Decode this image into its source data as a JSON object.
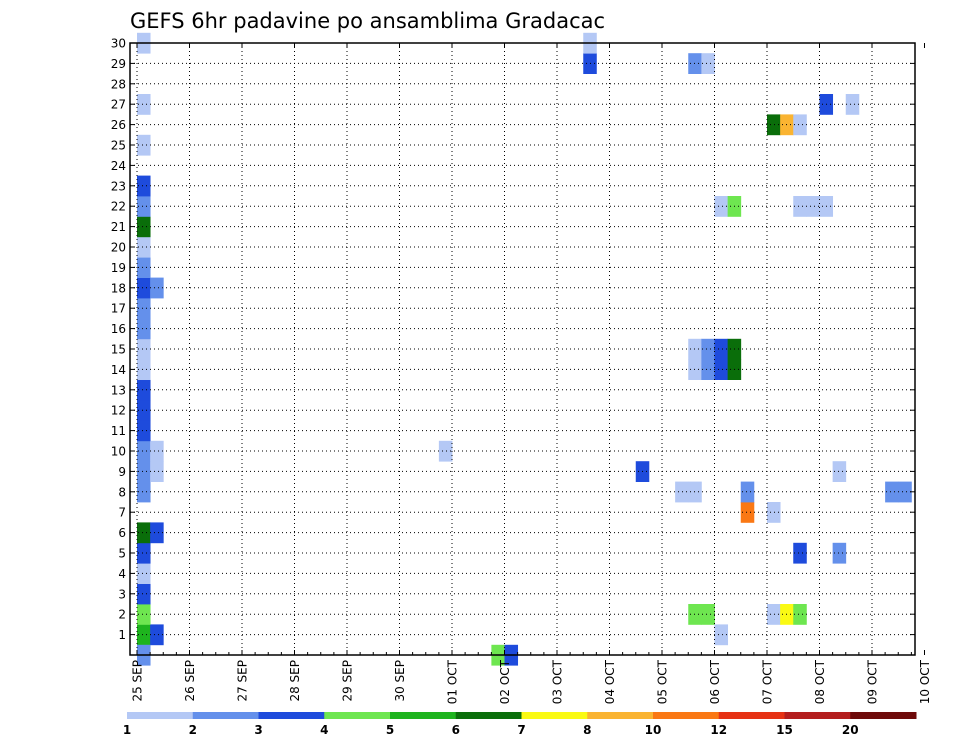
{
  "chart_data": {
    "type": "heatmap",
    "title": "GEFS 6hr padavine po ansamblima Gradacac",
    "x_ticks": [
      "25 SEP",
      "26 SEP",
      "27 SEP",
      "28 SEP",
      "29 SEP",
      "30 SEP",
      "01 OCT",
      "02 OCT",
      "03 OCT",
      "04 OCT",
      "05 OCT",
      "06 OCT",
      "07 OCT",
      "08 OCT",
      "09 OCT",
      "10 OCT"
    ],
    "y_ticks": [
      "1",
      "2",
      "3",
      "4",
      "5",
      "6",
      "7",
      "8",
      "9",
      "10",
      "11",
      "12",
      "13",
      "14",
      "15",
      "16",
      "17",
      "18",
      "19",
      "20",
      "21",
      "22",
      "23",
      "24",
      "25",
      "26",
      "27",
      "28",
      "29",
      "30"
    ],
    "xlabel": "",
    "ylabel": "",
    "y_range": [
      0,
      30
    ],
    "grid": "dotted",
    "colorbar": {
      "labels": [
        "1",
        "2",
        "3",
        "4",
        "5",
        "6",
        "7",
        "8",
        "10",
        "12",
        "15",
        "20"
      ],
      "colors": [
        "#b4c8f5",
        "#6490eb",
        "#1e4bdc",
        "#6ee650",
        "#1eb41e",
        "#0a6e0a",
        "#fafa14",
        "#fab432",
        "#fa7814",
        "#e63214",
        "#b41e1e",
        "#6e0a0a"
      ]
    },
    "legend_position": "bottom",
    "precip_cells": [
      {
        "member": 1,
        "day": "25 SEP",
        "hour": 6,
        "level": 5
      },
      {
        "member": 1,
        "day": "25 SEP",
        "hour": 12,
        "level": 3
      },
      {
        "member": 1,
        "day": "06 OCT",
        "hour": 6,
        "level": 1
      },
      {
        "member": 2,
        "day": "25 SEP",
        "hour": 6,
        "level": 4
      },
      {
        "member": 2,
        "day": "05 OCT",
        "hour": 18,
        "level": 4
      },
      {
        "member": 2,
        "day": "06 OCT",
        "hour": 0,
        "level": 4
      },
      {
        "member": 2,
        "day": "07 OCT",
        "hour": 6,
        "level": 1
      },
      {
        "member": 2,
        "day": "07 OCT",
        "hour": 12,
        "level": 7
      },
      {
        "member": 2,
        "day": "07 OCT",
        "hour": 18,
        "level": 4
      },
      {
        "member": 3,
        "day": "25 SEP",
        "hour": 6,
        "level": 3
      },
      {
        "member": 4,
        "day": "25 SEP",
        "hour": 6,
        "level": 1
      },
      {
        "member": 5,
        "day": "25 SEP",
        "hour": 6,
        "level": 3
      },
      {
        "member": 5,
        "day": "07 OCT",
        "hour": 18,
        "level": 3
      },
      {
        "member": 5,
        "day": "08 OCT",
        "hour": 12,
        "level": 2
      },
      {
        "member": 6,
        "day": "25 SEP",
        "hour": 6,
        "level": 6
      },
      {
        "member": 6,
        "day": "25 SEP",
        "hour": 12,
        "level": 3
      },
      {
        "member": 7,
        "day": "06 OCT",
        "hour": 18,
        "level": 9
      },
      {
        "member": 7,
        "day": "07 OCT",
        "hour": 6,
        "level": 1
      },
      {
        "member": 8,
        "day": "25 SEP",
        "hour": 6,
        "level": 2
      },
      {
        "member": 8,
        "day": "05 OCT",
        "hour": 12,
        "level": 1
      },
      {
        "member": 8,
        "day": "05 OCT",
        "hour": 18,
        "level": 1
      },
      {
        "member": 8,
        "day": "06 OCT",
        "hour": 18,
        "level": 2
      },
      {
        "member": 8,
        "day": "09 OCT",
        "hour": 12,
        "level": 2
      },
      {
        "member": 8,
        "day": "09 OCT",
        "hour": 18,
        "level": 2
      },
      {
        "member": 9,
        "day": "25 SEP",
        "hour": 6,
        "level": 2
      },
      {
        "member": 9,
        "day": "25 SEP",
        "hour": 12,
        "level": 1
      },
      {
        "member": 9,
        "day": "04 OCT",
        "hour": 18,
        "level": 3
      },
      {
        "member": 9,
        "day": "08 OCT",
        "hour": 12,
        "level": 1
      },
      {
        "member": 10,
        "day": "25 SEP",
        "hour": 6,
        "level": 2
      },
      {
        "member": 10,
        "day": "25 SEP",
        "hour": 12,
        "level": 1
      },
      {
        "member": 10,
        "day": "01 OCT",
        "hour": 0,
        "level": 1
      },
      {
        "member": 11,
        "day": "25 SEP",
        "hour": 6,
        "level": 3
      },
      {
        "member": 12,
        "day": "25 SEP",
        "hour": 6,
        "level": 3
      },
      {
        "member": 13,
        "day": "25 SEP",
        "hour": 6,
        "level": 3
      },
      {
        "member": 14,
        "day": "25 SEP",
        "hour": 6,
        "level": 1
      },
      {
        "member": 14,
        "day": "05 OCT",
        "hour": 18,
        "level": 1
      },
      {
        "member": 14,
        "day": "06 OCT",
        "hour": 0,
        "level": 2
      },
      {
        "member": 14,
        "day": "06 OCT",
        "hour": 6,
        "level": 3
      },
      {
        "member": 14,
        "day": "06 OCT",
        "hour": 12,
        "level": 6
      },
      {
        "member": 15,
        "day": "25 SEP",
        "hour": 6,
        "level": 1
      },
      {
        "member": 15,
        "day": "05 OCT",
        "hour": 18,
        "level": 1
      },
      {
        "member": 15,
        "day": "06 OCT",
        "hour": 0,
        "level": 2
      },
      {
        "member": 15,
        "day": "06 OCT",
        "hour": 6,
        "level": 3
      },
      {
        "member": 15,
        "day": "06 OCT",
        "hour": 12,
        "level": 6
      },
      {
        "member": 16,
        "day": "25 SEP",
        "hour": 6,
        "level": 2
      },
      {
        "member": 17,
        "day": "25 SEP",
        "hour": 6,
        "level": 2
      },
      {
        "member": 18,
        "day": "25 SEP",
        "hour": 6,
        "level": 3
      },
      {
        "member": 18,
        "day": "25 SEP",
        "hour": 12,
        "level": 2
      },
      {
        "member": 19,
        "day": "25 SEP",
        "hour": 6,
        "level": 2
      },
      {
        "member": 20,
        "day": "25 SEP",
        "hour": 6,
        "level": 1
      },
      {
        "member": 21,
        "day": "25 SEP",
        "hour": 6,
        "level": 6
      },
      {
        "member": 22,
        "day": "25 SEP",
        "hour": 6,
        "level": 2
      },
      {
        "member": 22,
        "day": "06 OCT",
        "hour": 6,
        "level": 1
      },
      {
        "member": 22,
        "day": "06 OCT",
        "hour": 12,
        "level": 4
      },
      {
        "member": 22,
        "day": "07 OCT",
        "hour": 18,
        "level": 1
      },
      {
        "member": 22,
        "day": "08 OCT",
        "hour": 0,
        "level": 1
      },
      {
        "member": 22,
        "day": "08 OCT",
        "hour": 6,
        "level": 1
      },
      {
        "member": 23,
        "day": "25 SEP",
        "hour": 6,
        "level": 3
      },
      {
        "member": 25,
        "day": "25 SEP",
        "hour": 6,
        "level": 1
      },
      {
        "member": 26,
        "day": "07 OCT",
        "hour": 6,
        "level": 6
      },
      {
        "member": 26,
        "day": "07 OCT",
        "hour": 12,
        "level": 8
      },
      {
        "member": 26,
        "day": "07 OCT",
        "hour": 18,
        "level": 1
      },
      {
        "member": 27,
        "day": "25 SEP",
        "hour": 6,
        "level": 1
      },
      {
        "member": 27,
        "day": "08 OCT",
        "hour": 6,
        "level": 3
      },
      {
        "member": 27,
        "day": "08 OCT",
        "hour": 18,
        "level": 1
      },
      {
        "member": 29,
        "day": "03 OCT",
        "hour": 18,
        "level": 3
      },
      {
        "member": 29,
        "day": "05 OCT",
        "hour": 18,
        "level": 2
      },
      {
        "member": 29,
        "day": "06 OCT",
        "hour": 0,
        "level": 1
      },
      {
        "member": 30,
        "day": "25 SEP",
        "hour": 6,
        "level": 1
      },
      {
        "member": 30,
        "day": "03 OCT",
        "hour": 18,
        "level": 1
      },
      {
        "member": 0,
        "day": "25 SEP",
        "hour": 6,
        "level": 2
      },
      {
        "member": 0,
        "day": "02 OCT",
        "hour": 0,
        "level": 4
      },
      {
        "member": 0,
        "day": "02 OCT",
        "hour": 6,
        "level": 3
      }
    ]
  }
}
